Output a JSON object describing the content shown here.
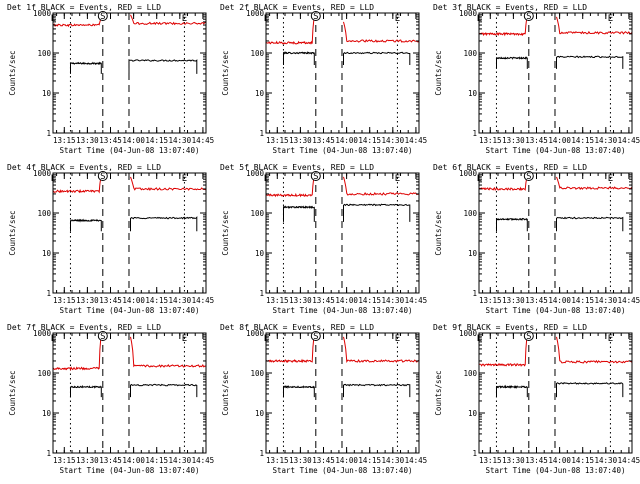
{
  "figure": {
    "colors": {
      "events": "#000000",
      "lld": "#dd0000",
      "background": "#ffffff"
    }
  },
  "chart_data": [
    {
      "type": "line",
      "title": "Det 1f BLACK = Events, RED = LLD",
      "xlabel": "Start Time (04-Jun-08 13:07:40)",
      "ylabel": "Counts/sec",
      "yscale": "log",
      "ylim": [
        1,
        1000
      ],
      "xlim": [
        "13:07:40",
        "14:47:00"
      ],
      "xticks": [
        "13:15",
        "13:30",
        "13:45",
        "14:00",
        "14:15",
        "14:30",
        "14:45"
      ],
      "yticks": [
        "1",
        "10",
        "100",
        "1000"
      ],
      "markers": {
        "S": "13:40",
        "E": [
          "13:08",
          "14:33"
        ],
        "dashed_lines": [
          "13:40",
          "13:57"
        ],
        "dotted_lines": [
          "13:19",
          "14:33"
        ]
      },
      "series": [
        {
          "name": "Events",
          "color": "#000000",
          "segments": [
            {
              "start": "13:19",
              "end": "13:39",
              "level": 55,
              "lead": 30
            },
            {
              "start": "13:57",
              "end": "14:41",
              "level": 65,
              "lead": 30
            }
          ]
        },
        {
          "name": "LLD",
          "color": "#dd0000",
          "segments": [
            {
              "start": "13:08",
              "end": "13:39",
              "level": 500,
              "peak": 800
            },
            {
              "start": "13:58",
              "end": "14:47",
              "level": 550,
              "peak": 900
            }
          ]
        }
      ]
    },
    {
      "type": "line",
      "title": "Det 2f BLACK = Events, RED = LLD",
      "xlabel": "Start Time (04-Jun-08 13:07:40)",
      "ylabel": "Counts/sec",
      "yscale": "log",
      "ylim": [
        1,
        1000
      ],
      "xlim": [
        "13:07:40",
        "14:47:00"
      ],
      "xticks": [
        "13:15",
        "13:30",
        "13:45",
        "14:00",
        "14:15",
        "14:30",
        "14:45"
      ],
      "yticks": [
        "1",
        "10",
        "100",
        "1000"
      ],
      "markers": {
        "S": "13:40",
        "E": [
          "13:08",
          "14:33"
        ],
        "dashed_lines": [
          "13:40",
          "13:57"
        ],
        "dotted_lines": [
          "13:19",
          "14:33"
        ]
      },
      "series": [
        {
          "name": "Events",
          "color": "#000000",
          "segments": [
            {
              "start": "13:19",
              "end": "13:39",
              "level": 100,
              "lead": 50
            },
            {
              "start": "13:58",
              "end": "14:41",
              "level": 100,
              "lead": 50
            }
          ]
        },
        {
          "name": "LLD",
          "color": "#dd0000",
          "segments": [
            {
              "start": "13:08",
              "end": "13:39",
              "level": 180,
              "peak": 800
            },
            {
              "start": "13:58",
              "end": "14:47",
              "level": 200,
              "peak": 600
            }
          ]
        }
      ]
    },
    {
      "type": "line",
      "title": "Det 3f BLACK = Events, RED = LLD",
      "xlabel": "Start Time (04-Jun-08 13:07:40)",
      "ylabel": "Counts/sec",
      "yscale": "log",
      "ylim": [
        1,
        1000
      ],
      "xlim": [
        "13:07:40",
        "14:47:00"
      ],
      "xticks": [
        "13:15",
        "13:30",
        "13:45",
        "14:00",
        "14:15",
        "14:30",
        "14:45"
      ],
      "yticks": [
        "1",
        "10",
        "100",
        "1000"
      ],
      "markers": {
        "S": "13:40",
        "E": [
          "13:08",
          "14:33"
        ],
        "dashed_lines": [
          "13:40",
          "13:57"
        ],
        "dotted_lines": [
          "13:19",
          "14:33"
        ]
      },
      "series": [
        {
          "name": "Events",
          "color": "#000000",
          "segments": [
            {
              "start": "13:19",
              "end": "13:39",
              "level": 75,
              "lead": 40
            },
            {
              "start": "13:58",
              "end": "14:41",
              "level": 80,
              "lead": 40
            }
          ]
        },
        {
          "name": "LLD",
          "color": "#dd0000",
          "segments": [
            {
              "start": "13:08",
              "end": "13:39",
              "level": 300,
              "peak": 900
            },
            {
              "start": "13:58",
              "end": "14:47",
              "level": 320,
              "peak": 800
            }
          ]
        }
      ]
    },
    {
      "type": "line",
      "title": "Det 4f BLACK = Events, RED = LLD",
      "xlabel": "Start Time (04-Jun-08 13:07:40)",
      "ylabel": "Counts/sec",
      "yscale": "log",
      "ylim": [
        1,
        1000
      ],
      "xlim": [
        "13:07:40",
        "14:47:00"
      ],
      "xticks": [
        "13:15",
        "13:30",
        "13:45",
        "14:00",
        "14:15",
        "14:30",
        "14:45"
      ],
      "yticks": [
        "1",
        "10",
        "100",
        "1000"
      ],
      "markers": {
        "S": "13:40",
        "E": [
          "13:08",
          "14:33"
        ],
        "dashed_lines": [
          "13:40",
          "13:57"
        ],
        "dotted_lines": [
          "13:19",
          "14:33"
        ]
      },
      "series": [
        {
          "name": "Events",
          "color": "#000000",
          "segments": [
            {
              "start": "13:19",
              "end": "13:39",
              "level": 65,
              "lead": 35
            },
            {
              "start": "13:58",
              "end": "14:41",
              "level": 75,
              "lead": 35
            }
          ]
        },
        {
          "name": "LLD",
          "color": "#dd0000",
          "segments": [
            {
              "start": "13:08",
              "end": "13:39",
              "level": 350,
              "peak": 900
            },
            {
              "start": "13:58",
              "end": "14:47",
              "level": 400,
              "peak": 800
            }
          ]
        }
      ]
    },
    {
      "type": "line",
      "title": "Det 5f BLACK = Events, RED = LLD",
      "xlabel": "Start Time (04-Jun-08 13:07:40)",
      "ylabel": "Counts/sec",
      "yscale": "log",
      "ylim": [
        1,
        1000
      ],
      "xlim": [
        "13:07:40",
        "14:47:00"
      ],
      "xticks": [
        "13:15",
        "13:30",
        "13:45",
        "14:00",
        "14:15",
        "14:30",
        "14:45"
      ],
      "yticks": [
        "1",
        "10",
        "100",
        "1000"
      ],
      "markers": {
        "S": "13:40",
        "E": [
          "13:08",
          "14:33"
        ],
        "dashed_lines": [
          "13:40",
          "13:57"
        ],
        "dotted_lines": [
          "13:19",
          "14:33"
        ]
      },
      "series": [
        {
          "name": "Events",
          "color": "#000000",
          "segments": [
            {
              "start": "13:19",
              "end": "13:39",
              "level": 140,
              "lead": 60
            },
            {
              "start": "13:58",
              "end": "14:41",
              "level": 160,
              "lead": 60
            }
          ]
        },
        {
          "name": "LLD",
          "color": "#dd0000",
          "segments": [
            {
              "start": "13:08",
              "end": "13:39",
              "level": 280,
              "peak": 900
            },
            {
              "start": "13:58",
              "end": "14:47",
              "level": 300,
              "peak": 800
            }
          ]
        }
      ]
    },
    {
      "type": "line",
      "title": "Det 6f BLACK = Events, RED = LLD",
      "xlabel": "Start Time (04-Jun-08 13:07:40)",
      "ylabel": "Counts/sec",
      "yscale": "log",
      "ylim": [
        1,
        1000
      ],
      "xlim": [
        "13:07:40",
        "14:47:00"
      ],
      "xticks": [
        "13:15",
        "13:30",
        "13:45",
        "14:00",
        "14:15",
        "14:30",
        "14:45"
      ],
      "yticks": [
        "1",
        "10",
        "100",
        "1000"
      ],
      "markers": {
        "S": "13:40",
        "E": [
          "13:08",
          "14:33"
        ],
        "dashed_lines": [
          "13:40",
          "13:57"
        ],
        "dotted_lines": [
          "13:19",
          "14:33"
        ]
      },
      "series": [
        {
          "name": "Events",
          "color": "#000000",
          "segments": [
            {
              "start": "13:19",
              "end": "13:39",
              "level": 70,
              "lead": 35
            },
            {
              "start": "13:58",
              "end": "14:41",
              "level": 75,
              "lead": 35
            }
          ]
        },
        {
          "name": "LLD",
          "color": "#dd0000",
          "segments": [
            {
              "start": "13:08",
              "end": "13:39",
              "level": 400,
              "peak": 900
            },
            {
              "start": "13:58",
              "end": "14:47",
              "level": 420,
              "peak": 800
            }
          ]
        }
      ]
    },
    {
      "type": "line",
      "title": "Det 7f BLACK = Events, RED = LLD",
      "xlabel": "Start Time (04-Jun-08 13:07:40)",
      "ylabel": "Counts/sec",
      "yscale": "log",
      "ylim": [
        1,
        1000
      ],
      "xlim": [
        "13:07:40",
        "14:47:00"
      ],
      "xticks": [
        "13:15",
        "13:30",
        "13:45",
        "14:00",
        "14:15",
        "14:30",
        "14:45"
      ],
      "yticks": [
        "1",
        "10",
        "100",
        "1000"
      ],
      "markers": {
        "S": "13:40",
        "E": [
          "13:08",
          "14:33"
        ],
        "dashed_lines": [
          "13:40",
          "13:57"
        ],
        "dotted_lines": [
          "13:19",
          "14:33"
        ]
      },
      "series": [
        {
          "name": "Events",
          "color": "#000000",
          "segments": [
            {
              "start": "13:19",
              "end": "13:39",
              "level": 45,
              "lead": 25
            },
            {
              "start": "13:58",
              "end": "14:41",
              "level": 50,
              "lead": 25
            }
          ]
        },
        {
          "name": "LLD",
          "color": "#dd0000",
          "segments": [
            {
              "start": "13:08",
              "end": "13:39",
              "level": 130,
              "peak": 900
            },
            {
              "start": "13:58",
              "end": "14:47",
              "level": 150,
              "peak": 800
            }
          ]
        }
      ]
    },
    {
      "type": "line",
      "title": "Det 8f BLACK = Events, RED = LLD",
      "xlabel": "Start Time (04-Jun-08 13:07:40)",
      "ylabel": "Counts/sec",
      "yscale": "log",
      "ylim": [
        1,
        1000
      ],
      "xlim": [
        "13:07:40",
        "14:47:00"
      ],
      "xticks": [
        "13:15",
        "13:30",
        "13:45",
        "14:00",
        "14:15",
        "14:30",
        "14:45"
      ],
      "yticks": [
        "1",
        "10",
        "100",
        "1000"
      ],
      "markers": {
        "S": "13:40",
        "E": [
          "13:08",
          "14:33"
        ],
        "dashed_lines": [
          "13:40",
          "13:57"
        ],
        "dotted_lines": [
          "13:19",
          "14:33"
        ]
      },
      "series": [
        {
          "name": "Events",
          "color": "#000000",
          "segments": [
            {
              "start": "13:19",
              "end": "13:39",
              "level": 45,
              "lead": 25
            },
            {
              "start": "13:58",
              "end": "14:41",
              "level": 50,
              "lead": 25
            }
          ]
        },
        {
          "name": "LLD",
          "color": "#dd0000",
          "segments": [
            {
              "start": "13:08",
              "end": "13:39",
              "level": 200,
              "peak": 900
            },
            {
              "start": "13:58",
              "end": "14:47",
              "level": 200,
              "peak": 800
            }
          ]
        }
      ]
    },
    {
      "type": "line",
      "title": "Det 9f BLACK = Events, RED = LLD",
      "xlabel": "Start Time (04-Jun-08 13:07:40)",
      "ylabel": "Counts/sec",
      "yscale": "log",
      "ylim": [
        1,
        1000
      ],
      "xlim": [
        "13:07:40",
        "14:47:00"
      ],
      "xticks": [
        "13:15",
        "13:30",
        "13:45",
        "14:00",
        "14:15",
        "14:30",
        "14:45"
      ],
      "yticks": [
        "1",
        "10",
        "100",
        "1000"
      ],
      "markers": {
        "S": "13:40",
        "E": [
          "13:08",
          "14:33"
        ],
        "dashed_lines": [
          "13:40",
          "13:57"
        ],
        "dotted_lines": [
          "13:19",
          "14:33"
        ]
      },
      "series": [
        {
          "name": "Events",
          "color": "#000000",
          "segments": [
            {
              "start": "13:19",
              "end": "13:39",
              "level": 45,
              "lead": 25
            },
            {
              "start": "13:58",
              "end": "14:41",
              "level": 55,
              "lead": 25
            }
          ]
        },
        {
          "name": "LLD",
          "color": "#dd0000",
          "segments": [
            {
              "start": "13:08",
              "end": "13:39",
              "level": 160,
              "peak": 900
            },
            {
              "start": "13:58",
              "end": "14:47",
              "level": 190,
              "peak": 800
            }
          ]
        }
      ]
    }
  ]
}
